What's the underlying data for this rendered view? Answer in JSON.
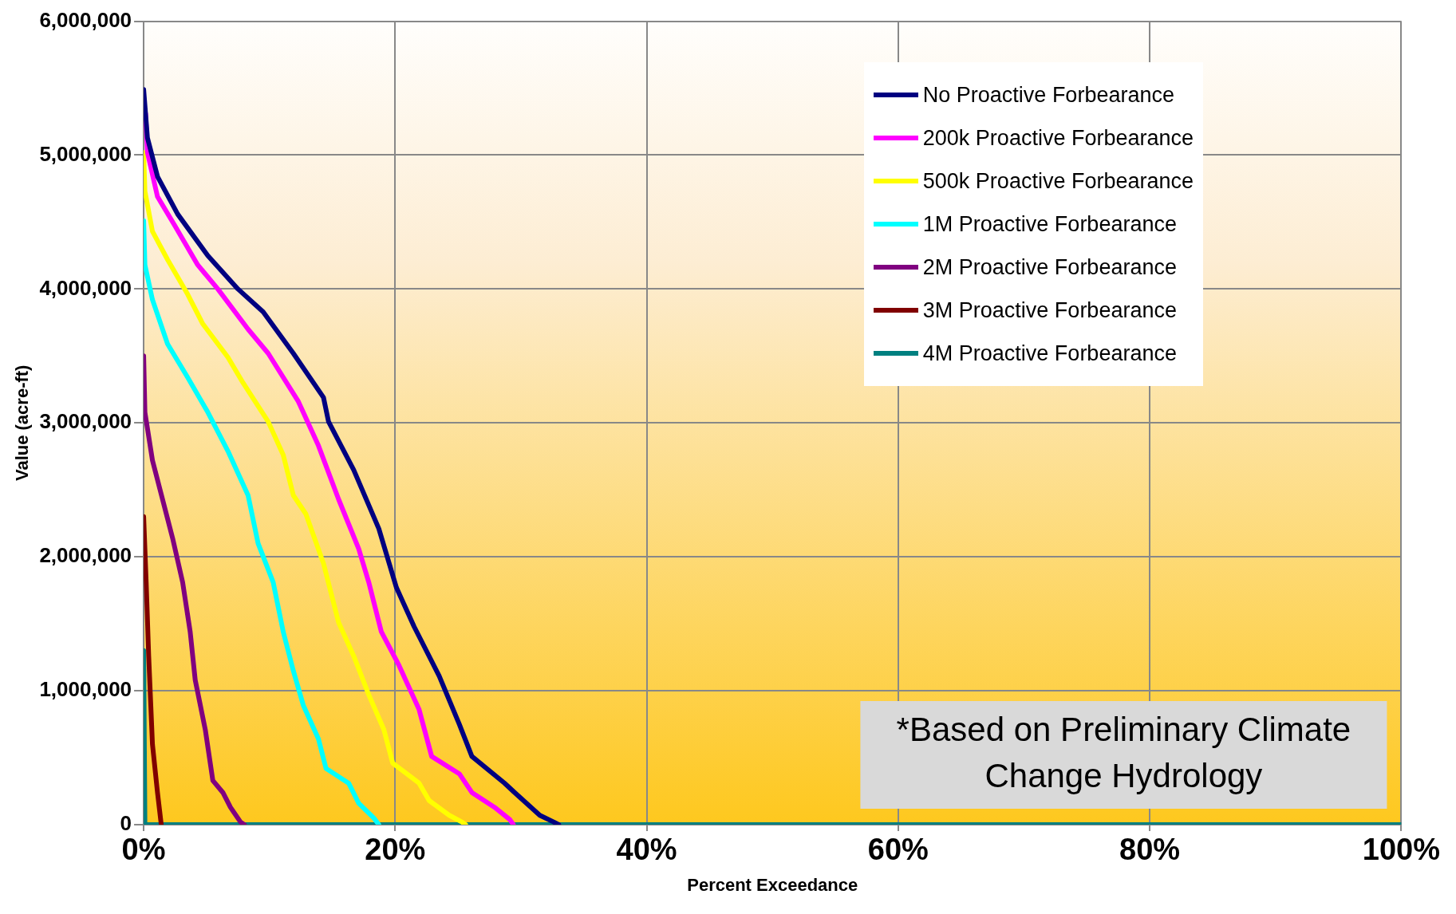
{
  "chart_data": {
    "type": "line",
    "xlabel": "Percent Exceedance",
    "ylabel": "Value (acre-ft)",
    "xlim": [
      0,
      100
    ],
    "xticks": [
      {
        "value": 0,
        "label": "0%"
      },
      {
        "value": 20,
        "label": "20%"
      },
      {
        "value": 40,
        "label": "40%"
      },
      {
        "value": 60,
        "label": "60%"
      },
      {
        "value": 80,
        "label": "80%"
      },
      {
        "value": 100,
        "label": "100%"
      }
    ],
    "ylim": [
      0,
      6000000
    ],
    "yticks": [
      0,
      {
        "value": 1000000,
        "label": "1,000,000"
      },
      {
        "value": 2000000,
        "label": "2,000,000"
      },
      {
        "value": 3000000,
        "label": "3,000,000"
      },
      {
        "value": 4000000,
        "label": "4,000,000"
      },
      {
        "value": 5000000,
        "label": "5,000,000"
      },
      {
        "value": 6000000,
        "label": "6,000,000"
      }
    ],
    "grid": true,
    "legend": "top right",
    "marker": "none",
    "line_style": "solid",
    "annotations": [
      "*Based on Preliminary Climate Change Hydrology"
    ],
    "series": [
      {
        "name": "No Proactive Forbearance",
        "color": "#000080",
        "x": [
          0,
          0.3,
          1.1,
          2.7,
          5.1,
          7.5,
          9.5,
          11.9,
          14.3,
          14.7,
          16.7,
          18.7,
          20.1,
          21.5,
          23.5,
          25.1,
          26.1,
          28.7,
          29.5,
          31.5,
          32.6,
          33
        ],
        "values": [
          5490000,
          5130000,
          4840000,
          4560000,
          4250000,
          4000000,
          3830000,
          3520000,
          3190000,
          3010000,
          2650000,
          2210000,
          1770000,
          1480000,
          1110000,
          750000,
          510000,
          310000,
          240000,
          70000,
          20000,
          0
        ]
      },
      {
        "name": "200k Proactive Forbearance",
        "color": "#ff00ff",
        "x": [
          0.15,
          0.3,
          1.1,
          2.5,
          4.3,
          5.9,
          8.3,
          9.9,
          12.3,
          13.9,
          15.5,
          17.1,
          17.9,
          18.9,
          20.3,
          21.9,
          22.9,
          25.1,
          26.1,
          27.9,
          29.1,
          29.4
        ],
        "values": [
          5310000,
          5020000,
          4690000,
          4470000,
          4180000,
          4000000,
          3700000,
          3520000,
          3160000,
          2830000,
          2430000,
          2060000,
          1810000,
          1440000,
          1190000,
          860000,
          510000,
          380000,
          240000,
          130000,
          40000,
          0
        ]
      },
      {
        "name": "500k Proactive Forbearance",
        "color": "#ffff00",
        "x": [
          0,
          0.1,
          0.7,
          1.9,
          3.5,
          4.7,
          6.7,
          7.9,
          9.9,
          11.1,
          11.9,
          12.9,
          14.3,
          15.5,
          16.7,
          17.9,
          19.1,
          19.8,
          21.9,
          22.7,
          24.3,
          25.3,
          25.6
        ],
        "values": [
          5020000,
          4730000,
          4430000,
          4220000,
          3960000,
          3740000,
          3490000,
          3300000,
          3010000,
          2760000,
          2460000,
          2320000,
          1950000,
          1510000,
          1260000,
          970000,
          710000,
          460000,
          310000,
          180000,
          70000,
          20000,
          0
        ]
      },
      {
        "name": "1M Proactive Forbearance",
        "color": "#00ffff",
        "x": [
          0,
          0.1,
          0.7,
          1.9,
          3.5,
          5.1,
          6.7,
          8.3,
          9.1,
          10.3,
          11.1,
          11.9,
          12.7,
          13.9,
          14.5,
          16.3,
          17.1,
          18.3,
          18.7
        ],
        "values": [
          4510000,
          4180000,
          3920000,
          3590000,
          3340000,
          3080000,
          2790000,
          2460000,
          2100000,
          1810000,
          1440000,
          1150000,
          890000,
          640000,
          420000,
          310000,
          160000,
          50000,
          0
        ]
      },
      {
        "name": "2M Proactive Forbearance",
        "color": "#800080",
        "x": [
          0,
          0.1,
          0.7,
          1.5,
          2.3,
          3.1,
          3.7,
          4.1,
          4.9,
          5.5,
          6.3,
          6.9,
          7.7,
          8
        ],
        "values": [
          3500000,
          3080000,
          2720000,
          2430000,
          2140000,
          1810000,
          1440000,
          1080000,
          710000,
          330000,
          240000,
          130000,
          20000,
          0
        ]
      },
      {
        "name": "3M Proactive Forbearance",
        "color": "#800000",
        "x": [
          0,
          0.2,
          0.4,
          0.7,
          1.1,
          1.4
        ],
        "values": [
          2300000,
          1810000,
          1260000,
          600000,
          240000,
          0
        ]
      },
      {
        "name": "4M Proactive Forbearance",
        "color": "#008080",
        "x": [
          0,
          0.1,
          100
        ],
        "values": [
          1300000,
          0,
          0
        ]
      }
    ]
  }
}
